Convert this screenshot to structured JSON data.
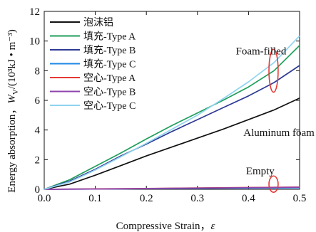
{
  "chart_data": {
    "type": "line",
    "xlabel": "Compressive Strain，",
    "xlabel_symbol": "ε",
    "ylabel": "Energy absorption，",
    "ylabel_symbol": "W",
    "ylabel_subscript": "V",
    "ylabel_units": "/(10³kJ • m⁻³)",
    "xlim": [
      0.0,
      0.5
    ],
    "ylim": [
      0,
      12
    ],
    "x_ticks": [
      "0.0",
      "0.1",
      "0.2",
      "0.3",
      "0.4",
      "0.5"
    ],
    "y_ticks": [
      "0",
      "2",
      "4",
      "6",
      "8",
      "10",
      "12"
    ],
    "grid": false,
    "legend_position": "top-left",
    "series": [
      {
        "name": "泡沫铝",
        "color": "#111111",
        "x": [
          0,
          0.05,
          0.1,
          0.15,
          0.2,
          0.25,
          0.3,
          0.35,
          0.4,
          0.45,
          0.5
        ],
        "y": [
          0,
          0.35,
          0.95,
          1.6,
          2.25,
          2.85,
          3.45,
          4.05,
          4.7,
          5.35,
          6.15
        ]
      },
      {
        "name": "填充-Type A",
        "color": "#1f9e5a",
        "x": [
          0,
          0.05,
          0.1,
          0.15,
          0.2,
          0.25,
          0.3,
          0.35,
          0.4,
          0.45,
          0.5
        ],
        "y": [
          0,
          0.65,
          1.55,
          2.45,
          3.4,
          4.3,
          5.15,
          6.0,
          6.9,
          8.0,
          9.7
        ]
      },
      {
        "name": "填充-Type B",
        "color": "#2e3a94",
        "x": [
          0,
          0.05,
          0.1,
          0.15,
          0.2,
          0.25,
          0.3,
          0.35,
          0.4,
          0.45,
          0.5
        ],
        "y": [
          0,
          0.55,
          1.35,
          2.25,
          3.05,
          3.9,
          4.7,
          5.5,
          6.3,
          7.2,
          8.35
        ]
      },
      {
        "name": "填充-Type C",
        "color": "#1e88e5",
        "x": [
          0,
          0.1,
          0.2,
          0.3,
          0.4,
          0.5
        ],
        "y": [
          0,
          0.02,
          0.04,
          0.06,
          0.08,
          0.1
        ]
      },
      {
        "name": "空心-Type A",
        "color": "#e53935",
        "x": [
          0,
          0.1,
          0.2,
          0.3,
          0.4,
          0.5
        ],
        "y": [
          0,
          0.03,
          0.06,
          0.09,
          0.12,
          0.15
        ]
      },
      {
        "name": "空心-Type B",
        "color": "#8e44ad",
        "x": [
          0,
          0.1,
          0.2,
          0.3,
          0.4,
          0.5
        ],
        "y": [
          0,
          0.02,
          0.05,
          0.08,
          0.11,
          0.14
        ]
      },
      {
        "name": "空心-Type C",
        "color": "#8fd3f0",
        "x": [
          0,
          0.05,
          0.1,
          0.15,
          0.2,
          0.25,
          0.3,
          0.35,
          0.4,
          0.45,
          0.5
        ],
        "y": [
          0,
          0.5,
          1.3,
          2.2,
          3.1,
          4.05,
          5.0,
          6.1,
          7.25,
          8.55,
          10.35
        ]
      }
    ],
    "annotations": [
      {
        "text": "Foam-filled",
        "x": 0.375,
        "y": 9.1
      },
      {
        "text": "Aluminum foam",
        "x": 0.39,
        "y": 3.6
      },
      {
        "text": "Empty",
        "x": 0.395,
        "y": 1.0
      }
    ],
    "ellipses": [
      {
        "cx": 0.449,
        "cy": 8.0,
        "rx": 0.009,
        "ry": 1.45,
        "color": "#e53935"
      },
      {
        "cx": 0.449,
        "cy": 0.35,
        "rx": 0.009,
        "ry": 0.55,
        "color": "#e53935"
      }
    ]
  }
}
